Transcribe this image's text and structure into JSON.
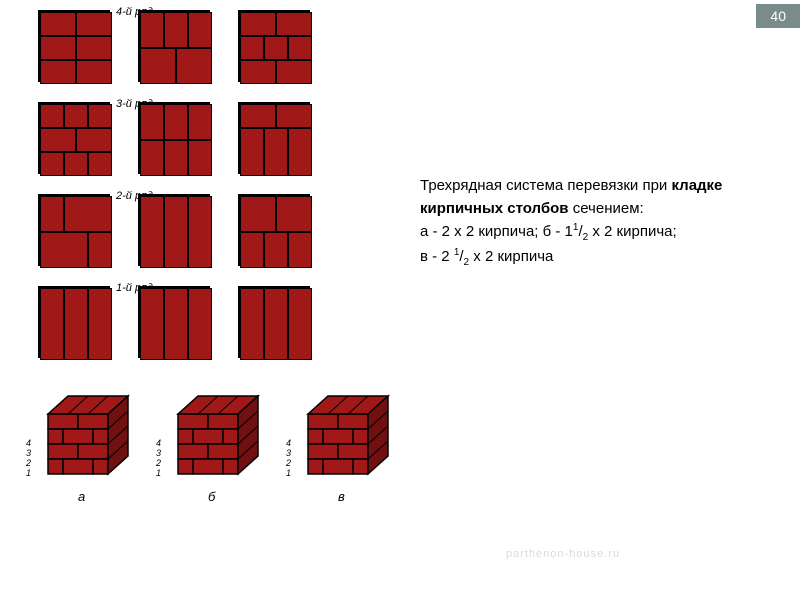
{
  "page_number": "40",
  "row_labels": [
    "4-й ряд",
    "3-й ряд",
    "2-й ряд",
    "1-й ряд"
  ],
  "iso_numbers": "4\n3\n2\n1",
  "iso_letters": [
    "а",
    "б",
    "в"
  ],
  "text": {
    "line1": "Трехрядная система перевязки при ",
    "bold": "кладке кирпичных столбов",
    "line2": " сечением:",
    "line3a": "а - 2 х 2 кирпича; б - 1",
    "line3b": " х 2 кирпича;",
    "line4a": " в - 2 ",
    "line4b": " х 2 кирпича",
    "frac1": "1",
    "frac2": "2"
  },
  "colors": {
    "brick": "#a01818",
    "mortar": "#000000",
    "bg": "#ffffff",
    "page_badge_bg": "#7a8b8b",
    "page_badge_fg": "#ffffff"
  },
  "watermark": "parthenon-house.ru",
  "patterns": {
    "comment": "12 top-view brick plan tiles (4 rows x 3 cols). Each tile is a set of bricks defined by [x,y,w,h] in a 6x6 grid.",
    "tiles": [
      [
        [
          0,
          0,
          3,
          2
        ],
        [
          3,
          0,
          3,
          2
        ],
        [
          0,
          2,
          3,
          2
        ],
        [
          3,
          2,
          3,
          2
        ],
        [
          0,
          4,
          3,
          2
        ],
        [
          3,
          4,
          3,
          2
        ]
      ],
      [
        [
          0,
          0,
          2,
          3
        ],
        [
          2,
          0,
          2,
          3
        ],
        [
          4,
          0,
          2,
          3
        ],
        [
          0,
          3,
          3,
          3
        ],
        [
          3,
          3,
          3,
          3
        ]
      ],
      [
        [
          0,
          0,
          3,
          2
        ],
        [
          3,
          0,
          3,
          2
        ],
        [
          0,
          2,
          2,
          2
        ],
        [
          2,
          2,
          2,
          2
        ],
        [
          4,
          2,
          2,
          2
        ],
        [
          0,
          4,
          3,
          2
        ],
        [
          3,
          4,
          3,
          2
        ]
      ],
      [
        [
          0,
          0,
          2,
          2
        ],
        [
          2,
          0,
          2,
          2
        ],
        [
          4,
          0,
          2,
          2
        ],
        [
          0,
          2,
          3,
          2
        ],
        [
          3,
          2,
          3,
          2
        ],
        [
          0,
          4,
          2,
          2
        ],
        [
          2,
          4,
          2,
          2
        ],
        [
          4,
          4,
          2,
          2
        ]
      ],
      [
        [
          0,
          0,
          2,
          3
        ],
        [
          2,
          0,
          2,
          3
        ],
        [
          4,
          0,
          2,
          3
        ],
        [
          0,
          3,
          2,
          3
        ],
        [
          2,
          3,
          2,
          3
        ],
        [
          4,
          3,
          2,
          3
        ]
      ],
      [
        [
          0,
          0,
          3,
          2
        ],
        [
          3,
          0,
          3,
          2
        ],
        [
          0,
          2,
          2,
          4
        ],
        [
          2,
          2,
          2,
          4
        ],
        [
          4,
          2,
          2,
          4
        ]
      ],
      [
        [
          0,
          0,
          2,
          3
        ],
        [
          2,
          0,
          4,
          3
        ],
        [
          0,
          3,
          4,
          3
        ],
        [
          4,
          3,
          2,
          3
        ]
      ],
      [
        [
          0,
          0,
          2,
          6
        ],
        [
          2,
          0,
          2,
          6
        ],
        [
          4,
          0,
          2,
          6
        ]
      ],
      [
        [
          0,
          0,
          3,
          3
        ],
        [
          3,
          0,
          3,
          3
        ],
        [
          0,
          3,
          2,
          3
        ],
        [
          2,
          3,
          2,
          3
        ],
        [
          4,
          3,
          2,
          3
        ]
      ],
      [
        [
          0,
          0,
          2,
          6
        ],
        [
          2,
          0,
          2,
          6
        ],
        [
          4,
          0,
          2,
          6
        ]
      ],
      [
        [
          0,
          0,
          2,
          6
        ],
        [
          2,
          0,
          2,
          6
        ],
        [
          4,
          0,
          2,
          6
        ]
      ],
      [
        [
          0,
          0,
          2,
          6
        ],
        [
          2,
          0,
          2,
          6
        ],
        [
          4,
          0,
          2,
          6
        ]
      ]
    ]
  }
}
